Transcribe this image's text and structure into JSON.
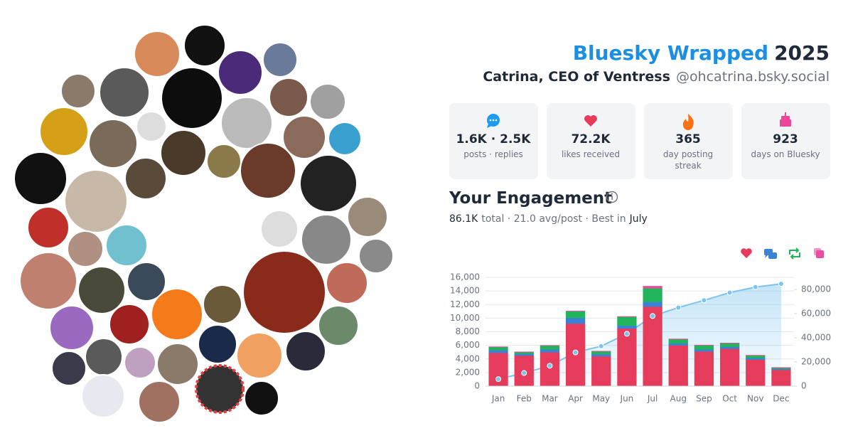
{
  "header": {
    "brand": "Bluesky Wrapped",
    "year": "2025",
    "name": "Catrina, CEO of Ventress",
    "handle": "@ohcatrina.bsky.social"
  },
  "stats": [
    {
      "value": "1.6K · 2.5K",
      "label": "posts · replies"
    },
    {
      "value": "72.2K",
      "label": "likes received"
    },
    {
      "value": "365",
      "label": [
        "day posting",
        "streak"
      ]
    },
    {
      "value": "923",
      "label": "days on Bluesky"
    }
  ],
  "engagement": {
    "title": "Your Engagement",
    "total": "86.1K",
    "middle": "total · 21.0 avg/post · Best in",
    "best": "July"
  },
  "chart_data": {
    "type": "bar",
    "categories": [
      "Jan",
      "Feb",
      "Mar",
      "Apr",
      "May",
      "Jun",
      "Jul",
      "Aug",
      "Sep",
      "Oct",
      "Nov",
      "Dec"
    ],
    "series": [
      {
        "color": "#e63c5c",
        "values": [
          4900,
          4500,
          5000,
          9200,
          4400,
          8500,
          11700,
          6000,
          5100,
          5500,
          3900,
          2400
        ]
      },
      {
        "color": "#3b82d6",
        "values": [
          400,
          250,
          400,
          850,
          300,
          400,
          700,
          300,
          300,
          300,
          250,
          150
        ]
      },
      {
        "color": "#22b45a",
        "values": [
          450,
          250,
          550,
          950,
          400,
          1300,
          2000,
          600,
          600,
          500,
          350,
          150
        ]
      },
      {
        "color": "#e84ea0",
        "values": [
          50,
          50,
          50,
          50,
          50,
          50,
          300,
          50,
          50,
          50,
          50,
          50
        ]
      },
      {
        "type": "line",
        "axis": "y2",
        "color": "#7cc4ee",
        "values": [
          5800,
          10850,
          16850,
          27900,
          33050,
          43300,
          58000,
          64950,
          71000,
          77350,
          81900,
          84650
        ]
      }
    ],
    "ylim": [
      0,
      16000
    ],
    "yticks": [
      0,
      {
        "value": 2000,
        "label": "2,000"
      },
      {
        "value": 4000,
        "label": "4,000"
      },
      {
        "value": 6000,
        "label": "6,000"
      },
      {
        "value": 8000,
        "label": "8,000"
      },
      {
        "value": 10000,
        "label": "10,000"
      },
      {
        "value": 12000,
        "label": "12,000"
      },
      {
        "value": 14000,
        "label": "14,000"
      },
      {
        "value": 16000,
        "label": "16,000"
      }
    ],
    "y2lim": [
      0,
      90000
    ],
    "y2ticks": [
      0,
      {
        "value": 20000,
        "label": "20,000"
      },
      {
        "value": 40000,
        "label": "40,000"
      },
      {
        "value": 60000,
        "label": "60,000"
      },
      {
        "value": 80000,
        "label": "80,000"
      }
    ],
    "grid": true
  }
}
